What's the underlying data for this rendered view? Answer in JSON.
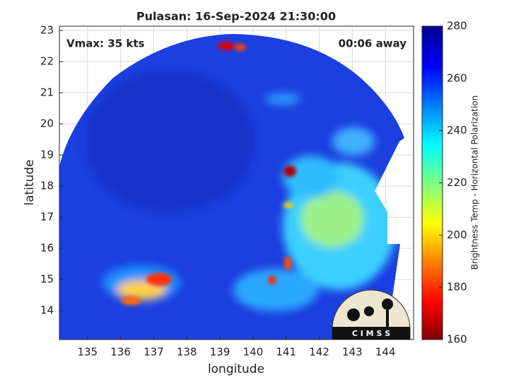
{
  "chart_data": {
    "type": "image",
    "title": "Pulasan: 16-Sep-2024 21:30:00",
    "annotations": [
      "Vmax: 35 kts",
      "00:06 away"
    ],
    "x_label": "longitude",
    "y_label": "latitude",
    "xlim": [
      134.15,
      144.85
    ],
    "xticks": [
      135,
      136,
      137,
      138,
      139,
      140,
      141,
      142,
      143,
      144
    ],
    "ylim": [
      13.07,
      23.14
    ],
    "yticks": [
      14,
      15,
      16,
      17,
      18,
      19,
      20,
      21,
      22,
      23
    ],
    "grid": true,
    "colorbar": {
      "label": "Brightness Temp - Horizontal Polarization",
      "lim": [
        160,
        280
      ],
      "ticks": [
        160,
        180,
        200,
        220,
        240,
        260,
        280
      ],
      "colormap": "jet"
    },
    "logo": "C I M S S"
  }
}
